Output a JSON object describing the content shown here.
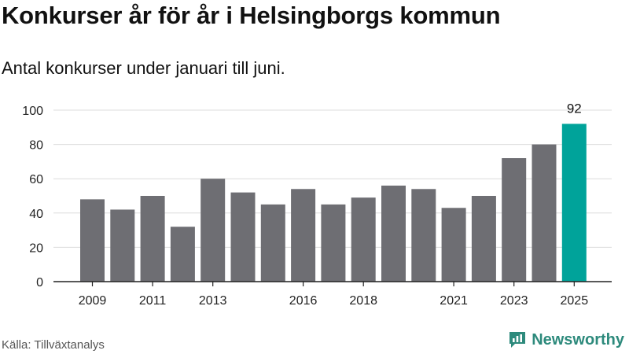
{
  "title": "Konkurser år för år i Helsingborgs kommun",
  "subtitle": "Antal konkurser under januari till juni.",
  "source": "Källa: Tillväxtanalys",
  "brand": {
    "name": "Newsworthy",
    "icon": "newsworthy-logo-icon"
  },
  "colors": {
    "bar": "#6e6e73",
    "highlight": "#00a39a",
    "grid": "#dcdcdc",
    "axis": "#222222"
  },
  "chart_data": {
    "type": "bar",
    "title": "Konkurser år för år i Helsingborgs kommun",
    "subtitle": "Antal konkurser under januari till juni.",
    "categories": [
      "2009",
      "2010",
      "2011",
      "2012",
      "2013",
      "2014",
      "2015",
      "2016",
      "2017",
      "2018",
      "2019",
      "2020",
      "2021",
      "2022",
      "2023",
      "2024",
      "2025"
    ],
    "values": [
      48,
      42,
      50,
      32,
      60,
      52,
      45,
      54,
      45,
      49,
      56,
      54,
      43,
      50,
      72,
      80,
      92
    ],
    "x_tick_labels": [
      "2009",
      "2011",
      "2013",
      "2016",
      "2018",
      "2021",
      "2023",
      "2025"
    ],
    "y_ticks": [
      0,
      20,
      40,
      60,
      80,
      100
    ],
    "ylim": [
      0,
      100
    ],
    "highlight_category": "2025",
    "data_labels": [
      {
        "category": "2025",
        "text": "92"
      }
    ],
    "grid": true,
    "xlabel": "",
    "ylabel": ""
  }
}
